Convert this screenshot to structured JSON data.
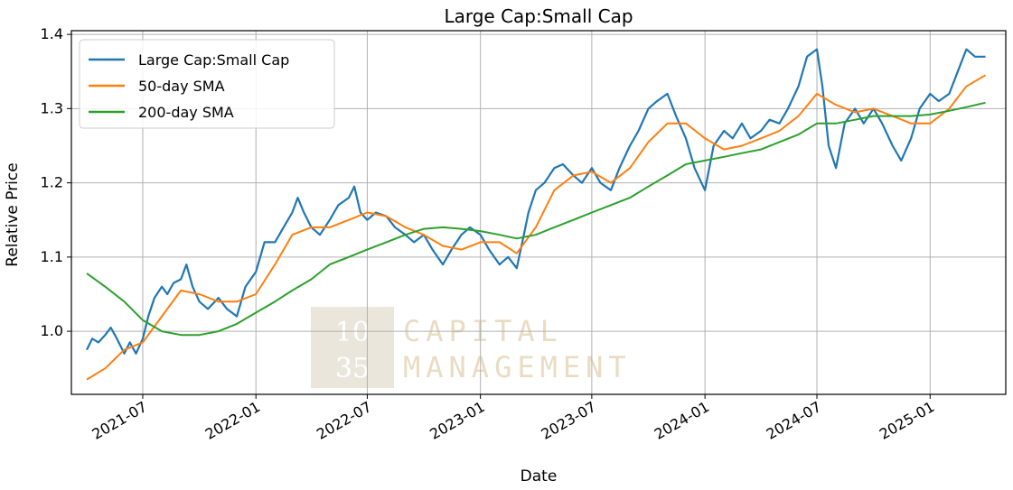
{
  "chart_data": {
    "type": "line",
    "title": "Large Cap:Small Cap",
    "xlabel": "Date",
    "ylabel": "Relative Price",
    "xlim": [
      "2021-03-07",
      "2025-05-04"
    ],
    "ylim": [
      0.915,
      1.405
    ],
    "x_ticks": [
      "2021-07",
      "2022-01",
      "2022-07",
      "2023-01",
      "2023-07",
      "2024-01",
      "2024-07",
      "2025-01"
    ],
    "y_ticks": [
      "1.0",
      "1.1",
      "1.2",
      "1.3",
      "1.4"
    ],
    "grid": true,
    "legend_position": "top-left",
    "series": [
      {
        "name": "Large Cap:Small Cap",
        "color": "#1f77b4",
        "points": [
          [
            "2021-04-01",
            0.975
          ],
          [
            "2021-04-10",
            0.99
          ],
          [
            "2021-04-20",
            0.985
          ],
          [
            "2021-05-01",
            0.995
          ],
          [
            "2021-05-10",
            1.005
          ],
          [
            "2021-05-20",
            0.99
          ],
          [
            "2021-06-01",
            0.97
          ],
          [
            "2021-06-10",
            0.985
          ],
          [
            "2021-06-20",
            0.97
          ],
          [
            "2021-07-01",
            0.99
          ],
          [
            "2021-07-10",
            1.02
          ],
          [
            "2021-07-20",
            1.045
          ],
          [
            "2021-08-01",
            1.06
          ],
          [
            "2021-08-10",
            1.05
          ],
          [
            "2021-08-20",
            1.065
          ],
          [
            "2021-09-01",
            1.07
          ],
          [
            "2021-09-10",
            1.09
          ],
          [
            "2021-09-20",
            1.06
          ],
          [
            "2021-10-01",
            1.04
          ],
          [
            "2021-10-15",
            1.03
          ],
          [
            "2021-11-01",
            1.045
          ],
          [
            "2021-11-15",
            1.03
          ],
          [
            "2021-12-01",
            1.02
          ],
          [
            "2021-12-15",
            1.06
          ],
          [
            "2022-01-01",
            1.08
          ],
          [
            "2022-01-15",
            1.12
          ],
          [
            "2022-02-01",
            1.12
          ],
          [
            "2022-02-15",
            1.14
          ],
          [
            "2022-03-01",
            1.16
          ],
          [
            "2022-03-10",
            1.18
          ],
          [
            "2022-03-20",
            1.16
          ],
          [
            "2022-04-01",
            1.14
          ],
          [
            "2022-04-15",
            1.13
          ],
          [
            "2022-05-01",
            1.15
          ],
          [
            "2022-05-15",
            1.17
          ],
          [
            "2022-06-01",
            1.18
          ],
          [
            "2022-06-10",
            1.195
          ],
          [
            "2022-06-20",
            1.16
          ],
          [
            "2022-07-01",
            1.15
          ],
          [
            "2022-07-15",
            1.16
          ],
          [
            "2022-08-01",
            1.155
          ],
          [
            "2022-08-15",
            1.14
          ],
          [
            "2022-09-01",
            1.13
          ],
          [
            "2022-09-15",
            1.12
          ],
          [
            "2022-10-01",
            1.13
          ],
          [
            "2022-10-15",
            1.11
          ],
          [
            "2022-11-01",
            1.09
          ],
          [
            "2022-11-15",
            1.11
          ],
          [
            "2022-12-01",
            1.13
          ],
          [
            "2022-12-15",
            1.14
          ],
          [
            "2023-01-01",
            1.13
          ],
          [
            "2023-01-15",
            1.11
          ],
          [
            "2023-02-01",
            1.09
          ],
          [
            "2023-02-15",
            1.1
          ],
          [
            "2023-03-01",
            1.085
          ],
          [
            "2023-03-10",
            1.12
          ],
          [
            "2023-03-20",
            1.16
          ],
          [
            "2023-04-01",
            1.19
          ],
          [
            "2023-04-15",
            1.2
          ],
          [
            "2023-05-01",
            1.22
          ],
          [
            "2023-05-15",
            1.225
          ],
          [
            "2023-06-01",
            1.21
          ],
          [
            "2023-06-15",
            1.2
          ],
          [
            "2023-07-01",
            1.22
          ],
          [
            "2023-07-15",
            1.2
          ],
          [
            "2023-08-01",
            1.19
          ],
          [
            "2023-08-15",
            1.22
          ],
          [
            "2023-09-01",
            1.25
          ],
          [
            "2023-09-15",
            1.27
          ],
          [
            "2023-10-01",
            1.3
          ],
          [
            "2023-10-15",
            1.31
          ],
          [
            "2023-11-01",
            1.32
          ],
          [
            "2023-11-15",
            1.29
          ],
          [
            "2023-12-01",
            1.26
          ],
          [
            "2023-12-15",
            1.22
          ],
          [
            "2024-01-01",
            1.19
          ],
          [
            "2024-01-15",
            1.25
          ],
          [
            "2024-02-01",
            1.27
          ],
          [
            "2024-02-15",
            1.26
          ],
          [
            "2024-03-01",
            1.28
          ],
          [
            "2024-03-15",
            1.26
          ],
          [
            "2024-04-01",
            1.27
          ],
          [
            "2024-04-15",
            1.285
          ],
          [
            "2024-05-01",
            1.28
          ],
          [
            "2024-05-15",
            1.3
          ],
          [
            "2024-06-01",
            1.33
          ],
          [
            "2024-06-15",
            1.37
          ],
          [
            "2024-07-01",
            1.38
          ],
          [
            "2024-07-10",
            1.33
          ],
          [
            "2024-07-20",
            1.25
          ],
          [
            "2024-08-01",
            1.22
          ],
          [
            "2024-08-15",
            1.28
          ],
          [
            "2024-09-01",
            1.3
          ],
          [
            "2024-09-15",
            1.28
          ],
          [
            "2024-10-01",
            1.3
          ],
          [
            "2024-10-15",
            1.28
          ],
          [
            "2024-11-01",
            1.25
          ],
          [
            "2024-11-15",
            1.23
          ],
          [
            "2024-12-01",
            1.26
          ],
          [
            "2024-12-15",
            1.3
          ],
          [
            "2025-01-01",
            1.32
          ],
          [
            "2025-01-15",
            1.31
          ],
          [
            "2025-02-01",
            1.32
          ],
          [
            "2025-02-15",
            1.35
          ],
          [
            "2025-03-01",
            1.38
          ],
          [
            "2025-03-15",
            1.37
          ],
          [
            "2025-04-01",
            1.37
          ]
        ]
      },
      {
        "name": "50-day SMA",
        "color": "#ff7f0e",
        "points": [
          [
            "2021-04-01",
            0.935
          ],
          [
            "2021-05-01",
            0.95
          ],
          [
            "2021-06-01",
            0.975
          ],
          [
            "2021-07-01",
            0.985
          ],
          [
            "2021-08-01",
            1.02
          ],
          [
            "2021-09-01",
            1.055
          ],
          [
            "2021-10-01",
            1.05
          ],
          [
            "2021-11-01",
            1.04
          ],
          [
            "2021-12-01",
            1.04
          ],
          [
            "2022-01-01",
            1.05
          ],
          [
            "2022-02-01",
            1.09
          ],
          [
            "2022-03-01",
            1.13
          ],
          [
            "2022-04-01",
            1.14
          ],
          [
            "2022-05-01",
            1.14
          ],
          [
            "2022-06-01",
            1.15
          ],
          [
            "2022-07-01",
            1.16
          ],
          [
            "2022-08-01",
            1.155
          ],
          [
            "2022-09-01",
            1.14
          ],
          [
            "2022-10-01",
            1.13
          ],
          [
            "2022-11-01",
            1.115
          ],
          [
            "2022-12-01",
            1.11
          ],
          [
            "2023-01-01",
            1.12
          ],
          [
            "2023-02-01",
            1.12
          ],
          [
            "2023-03-01",
            1.105
          ],
          [
            "2023-04-01",
            1.14
          ],
          [
            "2023-05-01",
            1.19
          ],
          [
            "2023-06-01",
            1.21
          ],
          [
            "2023-07-01",
            1.215
          ],
          [
            "2023-08-01",
            1.2
          ],
          [
            "2023-09-01",
            1.22
          ],
          [
            "2023-10-01",
            1.255
          ],
          [
            "2023-11-01",
            1.28
          ],
          [
            "2023-12-01",
            1.28
          ],
          [
            "2024-01-01",
            1.26
          ],
          [
            "2024-02-01",
            1.245
          ],
          [
            "2024-03-01",
            1.25
          ],
          [
            "2024-04-01",
            1.26
          ],
          [
            "2024-05-01",
            1.27
          ],
          [
            "2024-06-01",
            1.29
          ],
          [
            "2024-07-01",
            1.32
          ],
          [
            "2024-08-01",
            1.305
          ],
          [
            "2024-09-01",
            1.295
          ],
          [
            "2024-10-01",
            1.3
          ],
          [
            "2024-11-01",
            1.29
          ],
          [
            "2024-12-01",
            1.28
          ],
          [
            "2025-01-01",
            1.28
          ],
          [
            "2025-02-01",
            1.3
          ],
          [
            "2025-03-01",
            1.33
          ],
          [
            "2025-04-01",
            1.345
          ]
        ]
      },
      {
        "name": "200-day SMA",
        "color": "#2ca02c",
        "points": [
          [
            "2021-04-01",
            1.078
          ],
          [
            "2021-05-01",
            1.06
          ],
          [
            "2021-06-01",
            1.04
          ],
          [
            "2021-07-01",
            1.015
          ],
          [
            "2021-08-01",
            1.0
          ],
          [
            "2021-09-01",
            0.995
          ],
          [
            "2021-10-01",
            0.995
          ],
          [
            "2021-11-01",
            1.0
          ],
          [
            "2021-12-01",
            1.01
          ],
          [
            "2022-01-01",
            1.025
          ],
          [
            "2022-02-01",
            1.04
          ],
          [
            "2022-03-01",
            1.055
          ],
          [
            "2022-04-01",
            1.07
          ],
          [
            "2022-05-01",
            1.09
          ],
          [
            "2022-06-01",
            1.1
          ],
          [
            "2022-07-01",
            1.11
          ],
          [
            "2022-08-01",
            1.12
          ],
          [
            "2022-09-01",
            1.13
          ],
          [
            "2022-10-01",
            1.138
          ],
          [
            "2022-11-01",
            1.14
          ],
          [
            "2022-12-01",
            1.138
          ],
          [
            "2023-01-01",
            1.135
          ],
          [
            "2023-02-01",
            1.13
          ],
          [
            "2023-03-01",
            1.125
          ],
          [
            "2023-04-01",
            1.13
          ],
          [
            "2023-05-01",
            1.14
          ],
          [
            "2023-06-01",
            1.15
          ],
          [
            "2023-07-01",
            1.16
          ],
          [
            "2023-08-01",
            1.17
          ],
          [
            "2023-09-01",
            1.18
          ],
          [
            "2023-10-01",
            1.195
          ],
          [
            "2023-11-01",
            1.21
          ],
          [
            "2023-12-01",
            1.225
          ],
          [
            "2024-01-01",
            1.23
          ],
          [
            "2024-02-01",
            1.235
          ],
          [
            "2024-03-01",
            1.24
          ],
          [
            "2024-04-01",
            1.245
          ],
          [
            "2024-05-01",
            1.255
          ],
          [
            "2024-06-01",
            1.265
          ],
          [
            "2024-07-01",
            1.28
          ],
          [
            "2024-08-01",
            1.28
          ],
          [
            "2024-09-01",
            1.285
          ],
          [
            "2024-10-01",
            1.29
          ],
          [
            "2024-11-01",
            1.29
          ],
          [
            "2024-12-01",
            1.29
          ],
          [
            "2025-01-01",
            1.292
          ],
          [
            "2025-02-01",
            1.297
          ],
          [
            "2025-03-01",
            1.302
          ],
          [
            "2025-04-01",
            1.308
          ]
        ]
      }
    ]
  },
  "watermark": {
    "number_top": "10",
    "number_bottom": "35",
    "word_top": "CAPITAL",
    "word_bottom": "MANAGEMENT"
  }
}
